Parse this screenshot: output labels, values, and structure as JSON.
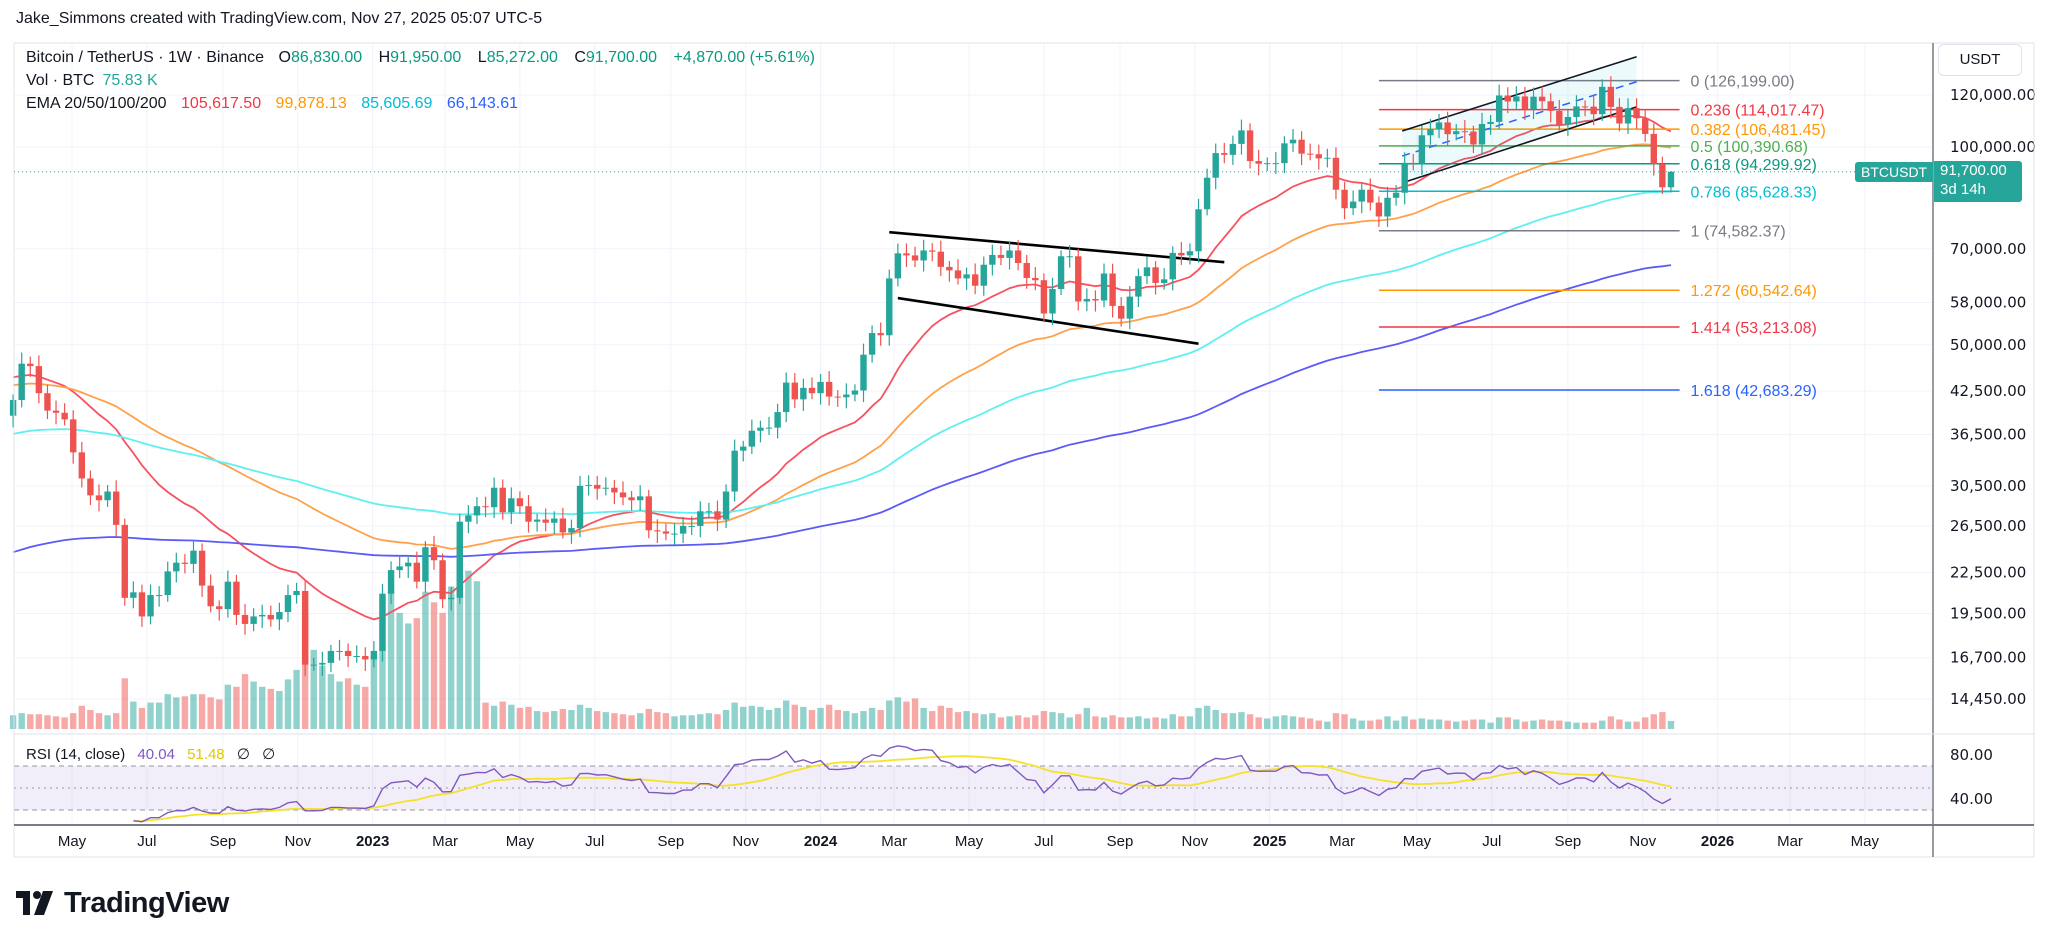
{
  "header": {
    "attribution": "Jake_Simmons created with TradingView.com, Nov 27, 2025 05:07 UTC-5"
  },
  "legend": {
    "symbol": "Bitcoin / TetherUS · 1W · Binance",
    "open_label": "O",
    "open": "86,830.00",
    "high_label": "H",
    "high": "91,950.00",
    "low_label": "L",
    "low": "85,272.00",
    "close_label": "C",
    "close": "91,700.00",
    "change": "+4,870.00 (+5.61%)",
    "vol_label": "Vol · BTC",
    "vol_value": "75.83 K",
    "ema_label": "EMA 20/50/100/200",
    "ema_values": [
      "105,617.50",
      "99,878.13",
      "85,605.69",
      "66,143.61"
    ],
    "rsi_label": "RSI (14, close)",
    "rsi_value": "40.04",
    "rsi_ma_value": "51.48",
    "rsi_extra1": "∅",
    "rsi_extra2": "∅"
  },
  "price_axis": {
    "currency_button": "USDT",
    "symbol_tag": "BTCUSDT",
    "last_price": "91,700.00",
    "countdown": "3d 14h"
  },
  "logo": {
    "text": "TradingView"
  },
  "colors": {
    "up": "#26a69a",
    "down": "#ef5350",
    "ema20": "#f7525f",
    "ema50": "#ffa04a",
    "ema100": "#5ef0f0",
    "ema200": "#5b5bf7",
    "rsi": "#7e57c2",
    "rsi_ma": "#f5e12a",
    "accent": "#26a69a"
  },
  "chart_data": {
    "type": "candlestick",
    "symbol": "BTCUSDT",
    "interval": "1W",
    "exchange": "Binance",
    "y_scale": "log",
    "ylim": [
      14450,
      120000
    ],
    "grid": true,
    "first_week": "2022-03-14",
    "first_open": 39000,
    "closes": [
      41200,
      46800,
      46400,
      42200,
      39700,
      39400,
      38500,
      34300,
      31300,
      29500,
      29000,
      29900,
      26600,
      20600,
      21000,
      19300,
      20800,
      20800,
      22600,
      23300,
      23200,
      24300,
      21500,
      20000,
      19800,
      21800,
      19400,
      18800,
      19300,
      19400,
      19100,
      19600,
      20800,
      21100,
      16300,
      16300,
      16400,
      17100,
      17100,
      16800,
      16800,
      16600,
      17100,
      20900,
      22700,
      23000,
      23300,
      21800,
      24600,
      23500,
      20500,
      20600,
      26900,
      27500,
      28400,
      28300,
      30300,
      27800,
      29200,
      28400,
      26900,
      27100,
      26800,
      27200,
      25900,
      26300,
      30500,
      30600,
      30200,
      30300,
      29800,
      29300,
      29000,
      29400,
      26100,
      26000,
      25800,
      25800,
      26500,
      26500,
      27900,
      27900,
      27100,
      29900,
      34500,
      35000,
      37000,
      37400,
      37400,
      39500,
      43800,
      41300,
      43000,
      42200,
      43900,
      41700,
      41600,
      42000,
      42600,
      48300,
      52100,
      51700,
      63100,
      68900,
      68400,
      67200,
      69600,
      69300,
      65700,
      64900,
      63100,
      64000,
      61500,
      66200,
      68500,
      67800,
      69600,
      66600,
      63200,
      62700,
      55800,
      60800,
      68200,
      68200,
      58200,
      58700,
      58400,
      64200,
      57300,
      54800,
      59200,
      63600,
      65600,
      62100,
      62900,
      69000,
      68400,
      69400,
      80400,
      89800,
      97900,
      97300,
      101100,
      106000,
      95200,
      94300,
      94500,
      94500,
      101300,
      102600,
      97700,
      97500,
      96100,
      96300,
      86100,
      80700,
      82600,
      86100,
      82300,
      78400,
      83700,
      85200,
      94600,
      94300,
      104200,
      106500,
      109000,
      104600,
      105700,
      105600,
      100900,
      108400,
      109200,
      119800,
      117300,
      119400,
      114200,
      119300,
      117400,
      113500,
      108200,
      111100,
      115300,
      115200,
      112200,
      123500,
      115100,
      108600,
      114600,
      110600,
      104700,
      94200,
      86830,
      91700
    ],
    "last_candle": {
      "open": 86830,
      "high": 91950,
      "low": 85272,
      "close": 91700
    },
    "volume_k_btc": [
      130,
      150,
      140,
      140,
      130,
      120,
      110,
      150,
      220,
      180,
      150,
      130,
      150,
      480,
      260,
      200,
      250,
      250,
      330,
      300,
      310,
      330,
      330,
      300,
      280,
      420,
      400,
      520,
      450,
      400,
      380,
      360,
      470,
      560,
      1050,
      750,
      600,
      520,
      450,
      480,
      420,
      400,
      700,
      1250,
      1300,
      1100,
      1000,
      1050,
      1300,
      1200,
      1100,
      1350,
      1800,
      1500,
      1400,
      250,
      220,
      260,
      230,
      200,
      210,
      170,
      160,
      170,
      190,
      180,
      230,
      200,
      170,
      160,
      150,
      140,
      130,
      150,
      190,
      160,
      150,
      120,
      130,
      130,
      140,
      150,
      140,
      180,
      250,
      210,
      220,
      210,
      180,
      200,
      270,
      230,
      210,
      180,
      200,
      230,
      180,
      170,
      150,
      170,
      200,
      180,
      270,
      300,
      260,
      290,
      200,
      170,
      220,
      200,
      160,
      170,
      150,
      140,
      150,
      110,
      120,
      130,
      110,
      130,
      170,
      160,
      150,
      110,
      140,
      200,
      120,
      110,
      130,
      110,
      110,
      120,
      100,
      110,
      100,
      140,
      120,
      120,
      200,
      220,
      180,
      150,
      150,
      160,
      140,
      110,
      100,
      120,
      130,
      120,
      110,
      100,
      80,
      70,
      150,
      140,
      100,
      80,
      80,
      90,
      120,
      80,
      120,
      90,
      100,
      90,
      90,
      80,
      70,
      80,
      90,
      90,
      60,
      110,
      110,
      90,
      70,
      80,
      90,
      80,
      80,
      70,
      60,
      60,
      60,
      80,
      120,
      90,
      70,
      70,
      110,
      140,
      160,
      75.83
    ],
    "ema": [
      {
        "name": "EMA 20",
        "period": 20,
        "start": 45000,
        "last": 105617.5
      },
      {
        "name": "EMA 50",
        "period": 50,
        "start": 43500,
        "last": 99878.13
      },
      {
        "name": "EMA 100",
        "period": 100,
        "start": 36500,
        "last": 85605.69
      },
      {
        "name": "EMA 200",
        "period": 200,
        "start": 24000,
        "last": 66143.61
      }
    ],
    "price_ticks": [
      {
        "value": 120000,
        "label": "120,000.00"
      },
      {
        "value": 100000,
        "label": "100,000.00"
      },
      {
        "value": 70000,
        "label": "70,000.00"
      },
      {
        "value": 58000,
        "label": "58,000.00"
      },
      {
        "value": 50000,
        "label": "50,000.00"
      },
      {
        "value": 42500,
        "label": "42,500.00"
      },
      {
        "value": 36500,
        "label": "36,500.00"
      },
      {
        "value": 30500,
        "label": "30,500.00"
      },
      {
        "value": 26500,
        "label": "26,500.00"
      },
      {
        "value": 22500,
        "label": "22,500.00"
      },
      {
        "value": 19500,
        "label": "19,500.00"
      },
      {
        "value": 16700,
        "label": "16,700.00"
      },
      {
        "value": 14450,
        "label": "14,450.00"
      }
    ],
    "rsi_ticks": [
      {
        "value": 80,
        "label": "80.00"
      },
      {
        "value": 40,
        "label": "40.00"
      }
    ],
    "rsi_bands": {
      "upper": 70,
      "middle": 50,
      "lower": 30
    },
    "time_ticks": [
      {
        "label": "May",
        "date": "2022-05-01"
      },
      {
        "label": "Jul",
        "date": "2022-07-01"
      },
      {
        "label": "Sep",
        "date": "2022-09-01"
      },
      {
        "label": "Nov",
        "date": "2022-11-01"
      },
      {
        "label": "2023",
        "date": "2023-01-01",
        "year": true
      },
      {
        "label": "Mar",
        "date": "2023-03-01"
      },
      {
        "label": "May",
        "date": "2023-05-01"
      },
      {
        "label": "Jul",
        "date": "2023-07-01"
      },
      {
        "label": "Sep",
        "date": "2023-09-01"
      },
      {
        "label": "Nov",
        "date": "2023-11-01"
      },
      {
        "label": "2024",
        "date": "2024-01-01",
        "year": true
      },
      {
        "label": "Mar",
        "date": "2024-03-01"
      },
      {
        "label": "May",
        "date": "2024-05-01"
      },
      {
        "label": "Jul",
        "date": "2024-07-01"
      },
      {
        "label": "Sep",
        "date": "2024-09-01"
      },
      {
        "label": "Nov",
        "date": "2024-11-01"
      },
      {
        "label": "2025",
        "date": "2025-01-01",
        "year": true
      },
      {
        "label": "Mar",
        "date": "2025-03-01"
      },
      {
        "label": "May",
        "date": "2025-05-01"
      },
      {
        "label": "Jul",
        "date": "2025-07-01"
      },
      {
        "label": "Sep",
        "date": "2025-09-01"
      },
      {
        "label": "Nov",
        "date": "2025-11-01"
      },
      {
        "label": "2026",
        "date": "2026-01-01",
        "year": true
      },
      {
        "label": "Mar",
        "date": "2026-03-01"
      },
      {
        "label": "May",
        "date": "2026-05-01"
      }
    ],
    "fibonacci": {
      "start": "2025-03-31",
      "end": "2025-12-01",
      "levels": [
        {
          "ratio": 0,
          "price": 126199.0,
          "label": "0 (126,199.00)",
          "color": "#787b86"
        },
        {
          "ratio": 0.236,
          "price": 114017.47,
          "label": "0.236 (114,017.47)",
          "color": "#f23645"
        },
        {
          "ratio": 0.382,
          "price": 106481.45,
          "label": "0.382 (106,481.45)",
          "color": "#ff9800"
        },
        {
          "ratio": 0.5,
          "price": 100390.68,
          "label": "0.5 (100,390.68)",
          "color": "#4caf50"
        },
        {
          "ratio": 0.618,
          "price": 94299.92,
          "label": "0.618 (94,299.92)",
          "color": "#089981"
        },
        {
          "ratio": 0.786,
          "price": 85628.33,
          "label": "0.786 (85,628.33)",
          "color": "#00bcd4"
        },
        {
          "ratio": 1,
          "price": 74582.37,
          "label": "1 (74,582.37)",
          "color": "#787b86"
        },
        {
          "ratio": 1.272,
          "price": 60542.64,
          "label": "1.272 (60,542.64)",
          "color": "#ff9800"
        },
        {
          "ratio": 1.414,
          "price": 53213.08,
          "label": "1.414 (53,213.08)",
          "color": "#f23645"
        },
        {
          "ratio": 1.618,
          "price": 42683.29,
          "label": "1.618 (42,683.29)",
          "color": "#2962ff"
        }
      ]
    },
    "trendlines": [
      {
        "name": "wedge-upper",
        "from": [
          "2024-02-26",
          74200
        ],
        "to": [
          "2024-11-25",
          66800
        ],
        "style": "bold"
      },
      {
        "name": "wedge-lower",
        "from": [
          "2024-03-04",
          58900
        ],
        "to": [
          "2024-11-04",
          50200
        ],
        "style": "bold"
      },
      {
        "name": "channel-upper",
        "from": [
          "2025-04-19",
          105800
        ],
        "to": [
          "2025-10-27",
          137200
        ],
        "style": "thin"
      },
      {
        "name": "channel-lower",
        "from": [
          "2025-04-19",
          88200
        ],
        "to": [
          "2025-10-27",
          115100
        ],
        "style": "thin"
      },
      {
        "name": "channel-mid",
        "from": [
          "2025-04-19",
          96900
        ],
        "to": [
          "2025-10-27",
          125700
        ],
        "style": "dashed"
      }
    ]
  }
}
